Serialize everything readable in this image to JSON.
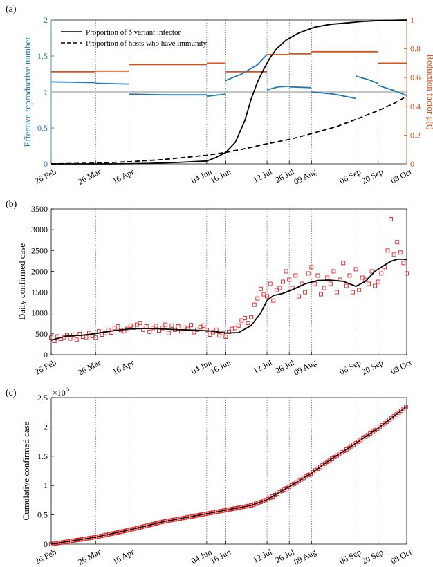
{
  "colors": {
    "blue": "#1f77b4",
    "orange": "#d95319",
    "red": "#e41a1c",
    "black": "#000000",
    "gray": "#a0a0a0"
  },
  "x_tick_labels": [
    "26 Feb",
    "26 Mar",
    "16 Apr",
    "04 Jun",
    "16 Jun",
    "12 Jul",
    "26 Jul",
    "09 Aug",
    "06 Sep",
    "20 Sep",
    "08 Oct"
  ],
  "x_tick_days": [
    0,
    28,
    49,
    98,
    110,
    136,
    150,
    164,
    192,
    206,
    224
  ],
  "chart_data": [
    {
      "type": "line",
      "panel_label": "(a)",
      "ylabel": "Effective reproductive number",
      "y2label": "Reduction factor μ(t)",
      "ylim": [
        0,
        2
      ],
      "y2lim": [
        0,
        1
      ],
      "yticks": [
        "0",
        "0.5",
        "1",
        "1.5",
        "2"
      ],
      "y2ticks": [
        "0",
        "0.2",
        "0.4",
        "0.6",
        "0.8",
        "1"
      ],
      "legend": [
        "Proportion of δ variant infector",
        "Proportion of hosts who have immunity"
      ],
      "reference_line_y": 1,
      "series": [
        {
          "name": "Proportion of δ variant infector",
          "axis": "right",
          "x": [
            0,
            40,
            60,
            80,
            98,
            104,
            110,
            116,
            122,
            126,
            130,
            134,
            138,
            142,
            148,
            156,
            166,
            176,
            186,
            196,
            206,
            216,
            224
          ],
          "values": [
            0,
            0.0,
            0.003,
            0.01,
            0.02,
            0.045,
            0.08,
            0.15,
            0.3,
            0.45,
            0.57,
            0.66,
            0.74,
            0.8,
            0.86,
            0.91,
            0.95,
            0.97,
            0.98,
            0.99,
            0.995,
            0.998,
            1
          ]
        },
        {
          "name": "Proportion of hosts who have immunity",
          "axis": "right",
          "x": [
            0,
            28,
            49,
            70,
            98,
            110,
            124,
            136,
            150,
            164,
            180,
            192,
            206,
            216,
            224
          ],
          "values": [
            0,
            0.005,
            0.015,
            0.03,
            0.06,
            0.08,
            0.11,
            0.14,
            0.17,
            0.21,
            0.26,
            0.31,
            0.37,
            0.42,
            0.47
          ]
        },
        {
          "name": "Effective reproductive number",
          "axis": "left",
          "segments": [
            {
              "x": [
                0,
                28
              ],
              "values": [
                1.14,
                1.13
              ]
            },
            {
              "x": [
                28,
                49
              ],
              "values": [
                1.12,
                1.11
              ]
            },
            {
              "x": [
                49,
                70,
                90,
                98
              ],
              "values": [
                0.97,
                0.96,
                0.96,
                0.96
              ]
            },
            {
              "x": [
                98,
                110
              ],
              "values": [
                0.94,
                0.97
              ]
            },
            {
              "x": [
                110,
                120,
                130,
                136
              ],
              "values": [
                1.16,
                1.25,
                1.38,
                1.52
              ]
            },
            {
              "x": [
                136,
                143,
                150
              ],
              "values": [
                1.03,
                1.07,
                1.08
              ]
            },
            {
              "x": [
                150,
                164
              ],
              "values": [
                1.07,
                1.06
              ]
            },
            {
              "x": [
                164,
                178,
                192
              ],
              "values": [
                1.0,
                0.97,
                0.91
              ]
            },
            {
              "x": [
                192,
                200,
                206
              ],
              "values": [
                1.22,
                1.17,
                1.12
              ]
            },
            {
              "x": [
                206,
                216,
                224
              ],
              "values": [
                1.09,
                1.02,
                0.95
              ]
            }
          ]
        },
        {
          "name": "Reduction factor",
          "axis": "right",
          "segments": [
            {
              "x": [
                0,
                28
              ],
              "values": [
                0.64,
                0.64
              ]
            },
            {
              "x": [
                28,
                49
              ],
              "values": [
                0.645,
                0.645
              ]
            },
            {
              "x": [
                49,
                98
              ],
              "values": [
                0.69,
                0.69
              ]
            },
            {
              "x": [
                98,
                110
              ],
              "values": [
                0.7,
                0.7
              ]
            },
            {
              "x": [
                110,
                136
              ],
              "values": [
                0.64,
                0.64
              ]
            },
            {
              "x": [
                136,
                150
              ],
              "values": [
                0.76,
                0.76
              ]
            },
            {
              "x": [
                150,
                164
              ],
              "values": [
                0.765,
                0.765
              ]
            },
            {
              "x": [
                164,
                206
              ],
              "values": [
                0.78,
                0.78
              ]
            },
            {
              "x": [
                206,
                224
              ],
              "values": [
                0.7,
                0.7
              ]
            }
          ]
        }
      ]
    },
    {
      "type": "scatter",
      "panel_label": "(b)",
      "ylabel": "Daily confirmed case",
      "ylim": [
        0,
        3500
      ],
      "yticks": [
        "0",
        "500",
        "1000",
        "1500",
        "2000",
        "2500",
        "3000",
        "3500"
      ],
      "trend": {
        "x": [
          0,
          10,
          20,
          30,
          40,
          50,
          60,
          70,
          80,
          90,
          100,
          110,
          118,
          126,
          132,
          136,
          140,
          146,
          152,
          160,
          168,
          176,
          184,
          192,
          198,
          204,
          210,
          214,
          218,
          222,
          224
        ],
        "values": [
          350,
          450,
          470,
          520,
          580,
          620,
          630,
          620,
          600,
          590,
          570,
          520,
          530,
          700,
          1000,
          1300,
          1420,
          1470,
          1560,
          1700,
          1780,
          1790,
          1760,
          1640,
          1760,
          2000,
          2150,
          2240,
          2290,
          2290,
          2280
        ]
      },
      "points_x": [
        0,
        2,
        4,
        6,
        8,
        10,
        12,
        14,
        16,
        18,
        20,
        22,
        24,
        26,
        28,
        30,
        32,
        34,
        36,
        38,
        40,
        42,
        44,
        46,
        48,
        50,
        52,
        54,
        56,
        58,
        60,
        62,
        64,
        66,
        68,
        70,
        72,
        74,
        76,
        78,
        80,
        82,
        84,
        86,
        88,
        90,
        92,
        94,
        96,
        98,
        100,
        102,
        104,
        106,
        108,
        110,
        112,
        114,
        116,
        118,
        120,
        122,
        124,
        126,
        128,
        130,
        132,
        134,
        136,
        138,
        140,
        142,
        144,
        146,
        148,
        150,
        152,
        154,
        156,
        158,
        160,
        162,
        164,
        166,
        168,
        170,
        172,
        174,
        176,
        178,
        180,
        182,
        184,
        186,
        188,
        190,
        192,
        194,
        196,
        198,
        200,
        202,
        204,
        206,
        208,
        210,
        212,
        214,
        216,
        218,
        220,
        222,
        224
      ],
      "points_y": [
        410,
        330,
        440,
        380,
        420,
        470,
        390,
        480,
        360,
        500,
        430,
        420,
        520,
        450,
        410,
        560,
        480,
        520,
        600,
        530,
        640,
        680,
        590,
        560,
        620,
        700,
        650,
        720,
        760,
        600,
        680,
        550,
        640,
        690,
        580,
        640,
        720,
        520,
        700,
        600,
        680,
        560,
        650,
        620,
        710,
        540,
        600,
        660,
        700,
        590,
        480,
        540,
        600,
        460,
        520,
        430,
        550,
        620,
        640,
        700,
        820,
        880,
        760,
        900,
        1200,
        1350,
        1580,
        1450,
        1400,
        1700,
        1300,
        1550,
        1600,
        1750,
        2000,
        1800,
        1600,
        1900,
        1400,
        1700,
        1500,
        1950,
        2100,
        1700,
        1900,
        1450,
        1600,
        1850,
        1700,
        2000,
        1500,
        1800,
        2200,
        1650,
        1900,
        1500,
        2050,
        1550,
        1850,
        1800,
        1700,
        2000,
        1650,
        1750,
        1950,
        2100,
        2500,
        3250,
        2400,
        2700,
        2450,
        2200,
        1950,
        1600,
        2350,
        2200
      ]
    },
    {
      "type": "scatter",
      "panel_label": "(c)",
      "ylabel": "Cumulative confirmed case",
      "ylim": [
        0,
        250000
      ],
      "yticks": [
        "0",
        "0.5",
        "1",
        "1.5",
        "2",
        "2.5"
      ],
      "y_exponent": "×10",
      "y_exponent_power": "5",
      "trend": {
        "x": [
          0,
          28,
          49,
          70,
          98,
          110,
          126,
          136,
          150,
          164,
          178,
          192,
          206,
          216,
          224
        ],
        "values": [
          0,
          12000,
          24000,
          38000,
          52000,
          58000,
          66000,
          76000,
          98000,
          121000,
          148000,
          172000,
          198000,
          218000,
          235000
        ]
      }
    }
  ]
}
